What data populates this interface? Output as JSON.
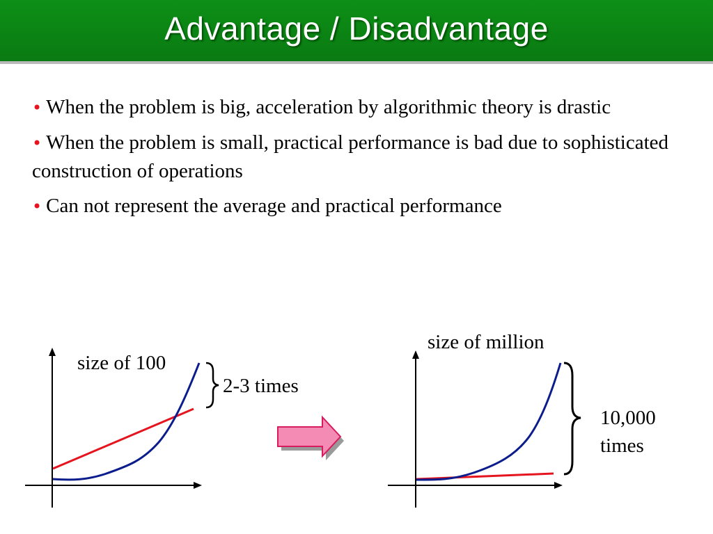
{
  "slide": {
    "title": "Advantage / Disadvantage",
    "bullets": [
      "When the problem is big, acceleration by algorithmic theory is drastic",
      "When the problem is small, practical performance is bad due to sophisticated construction of operations",
      "Can not represent the average and practical performance"
    ]
  },
  "diagram": {
    "left": {
      "size_label": "size of 100",
      "ratio_label": "2-3 times"
    },
    "right": {
      "size_label": "size of million",
      "ratio_label_line1": "10,000",
      "ratio_label_line2": "times"
    },
    "colors": {
      "title_bg": "#0a7a12",
      "bullet": "#e5141e",
      "linear_line": "#e5141e",
      "curve": "#0b1c8c",
      "arrow_fill": "#f38bb4",
      "arrow_stroke": "#d81b5c"
    }
  }
}
